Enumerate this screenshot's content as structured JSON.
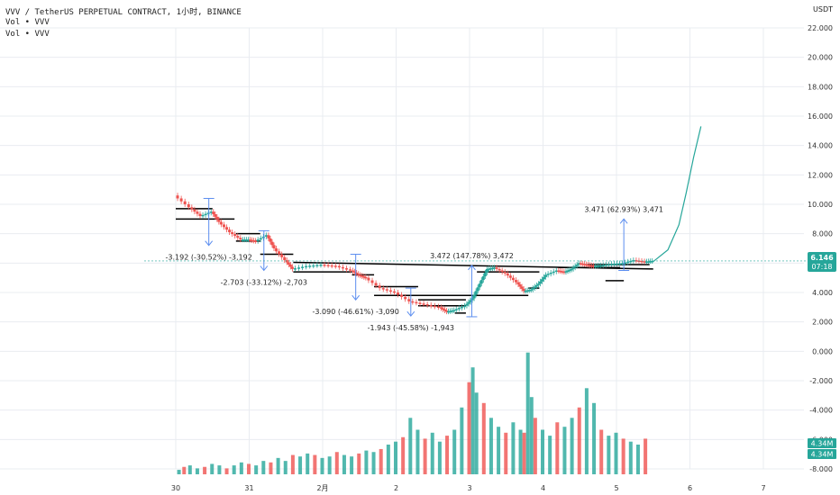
{
  "header": {
    "symbol_line": "VVV / TetherUS PERPETUAL CONTRACT, 1小时, BINANCE",
    "vol_line_1": "Vol • VVV",
    "vol_line_2": "Vol • VVV",
    "unit": "USDT"
  },
  "price_badge": {
    "value": "6.146",
    "timer": "07:18",
    "color": "#26a69a"
  },
  "volume_badges": [
    "4.34M",
    "4.34M"
  ],
  "colors": {
    "up": "#26a69a",
    "down": "#ef5350",
    "measure": "#5b8def",
    "trend": "#000000",
    "projection": "#26a69a",
    "grid": "#e9ecf1"
  },
  "chart_data": {
    "type": "candlestick",
    "yticks": [
      "22.000",
      "20.000",
      "18.000",
      "16.000",
      "14.000",
      "12.000",
      "10.000",
      "8.000",
      "6.000",
      "4.000",
      "2.000",
      "0.000",
      "-2.000",
      "-4.000",
      "-6.000",
      "-8.000"
    ],
    "ylim": [
      -8,
      22
    ],
    "xticks": [
      "30",
      "31",
      "2月",
      "2",
      "3",
      "4",
      "5",
      "6",
      "7"
    ],
    "price_path": [
      [
        0,
        10.6
      ],
      [
        0.2,
        9.8
      ],
      [
        0.35,
        9.2
      ],
      [
        0.5,
        9.5
      ],
      [
        0.6,
        8.8
      ],
      [
        0.75,
        8.1
      ],
      [
        0.9,
        7.6
      ],
      [
        1.0,
        7.6
      ],
      [
        1.1,
        7.5
      ],
      [
        1.25,
        7.9
      ],
      [
        1.35,
        7.0
      ],
      [
        1.5,
        6.2
      ],
      [
        1.6,
        5.6
      ],
      [
        1.8,
        5.8
      ],
      [
        2.0,
        5.9
      ],
      [
        2.2,
        5.8
      ],
      [
        2.4,
        5.5
      ],
      [
        2.5,
        5.2
      ],
      [
        2.6,
        5.0
      ],
      [
        2.8,
        4.3
      ],
      [
        3.0,
        4.0
      ],
      [
        3.2,
        3.4
      ],
      [
        3.4,
        3.2
      ],
      [
        3.6,
        3.0
      ],
      [
        3.7,
        2.7
      ],
      [
        3.8,
        2.8
      ],
      [
        3.95,
        3.1
      ],
      [
        4.05,
        3.6
      ],
      [
        4.15,
        4.6
      ],
      [
        4.25,
        5.6
      ],
      [
        4.35,
        5.7
      ],
      [
        4.5,
        5.3
      ],
      [
        4.65,
        4.7
      ],
      [
        4.75,
        4.1
      ],
      [
        4.85,
        4.2
      ],
      [
        4.95,
        4.6
      ],
      [
        5.05,
        5.2
      ],
      [
        5.2,
        5.5
      ],
      [
        5.3,
        5.4
      ],
      [
        5.4,
        5.6
      ],
      [
        5.5,
        6.0
      ],
      [
        5.6,
        5.9
      ],
      [
        5.7,
        5.8
      ],
      [
        5.8,
        5.85
      ],
      [
        5.95,
        5.95
      ],
      [
        6.1,
        6.0
      ],
      [
        6.25,
        6.2
      ],
      [
        6.4,
        6.1
      ],
      [
        6.5,
        6.146
      ]
    ],
    "projection": [
      [
        6.5,
        6.1
      ],
      [
        6.7,
        6.9
      ],
      [
        6.85,
        8.6
      ],
      [
        6.95,
        10.8
      ],
      [
        7.05,
        13.2
      ],
      [
        7.15,
        15.3
      ]
    ],
    "trend_lines": [
      [
        [
          0,
          9.7
        ],
        [
          0.5,
          9.7
        ]
      ],
      [
        [
          0,
          9.0
        ],
        [
          0.8,
          9.0
        ]
      ],
      [
        [
          0.82,
          8.0
        ],
        [
          1.15,
          8.0
        ]
      ],
      [
        [
          0.82,
          7.5
        ],
        [
          1.15,
          7.5
        ]
      ],
      [
        [
          1.15,
          6.6
        ],
        [
          1.6,
          6.6
        ]
      ],
      [
        [
          1.6,
          6.05
        ],
        [
          6.5,
          5.6
        ]
      ],
      [
        [
          1.6,
          5.4
        ],
        [
          2.4,
          5.4
        ]
      ],
      [
        [
          2.4,
          5.2
        ],
        [
          2.7,
          5.2
        ]
      ],
      [
        [
          2.7,
          4.4
        ],
        [
          3.3,
          4.4
        ]
      ],
      [
        [
          2.7,
          3.8
        ],
        [
          4.8,
          3.8
        ]
      ],
      [
        [
          3.3,
          3.5
        ],
        [
          3.95,
          3.5
        ]
      ],
      [
        [
          3.3,
          3.1
        ],
        [
          3.95,
          3.1
        ]
      ],
      [
        [
          3.8,
          2.6
        ],
        [
          3.95,
          2.6
        ]
      ],
      [
        [
          4.1,
          5.4
        ],
        [
          4.95,
          5.4
        ]
      ],
      [
        [
          4.8,
          4.3
        ],
        [
          4.95,
          4.3
        ]
      ],
      [
        [
          5.2,
          5.7
        ],
        [
          6.05,
          5.7
        ]
      ],
      [
        [
          5.6,
          5.9
        ],
        [
          6.45,
          5.9
        ]
      ],
      [
        [
          5.85,
          4.8
        ],
        [
          6.1,
          4.8
        ]
      ]
    ],
    "measurements": [
      {
        "label": "-3.192 (-30.52%) -3,192",
        "x": 0.45,
        "from": 10.4,
        "to": 7.2
      },
      {
        "label": "-2.703 (-33.12%) -2,703",
        "x": 1.2,
        "from": 8.2,
        "to": 5.5
      },
      {
        "label": "-3.090 (-46.61%) -3,090",
        "x": 2.45,
        "from": 6.6,
        "to": 3.5
      },
      {
        "label": "-1.943 (-45.58%) -1,943",
        "x": 3.2,
        "from": 4.3,
        "to": 2.4
      },
      {
        "label": "3.472 (147.78%) 3,472",
        "x": 4.03,
        "from": 2.35,
        "to": 5.85
      },
      {
        "label": "3.471 (62.93%) 3,471",
        "x": 6.1,
        "from": 5.5,
        "to": 9.0
      }
    ],
    "volume": [
      [
        0.05,
        3
      ],
      [
        0.12,
        5
      ],
      [
        0.2,
        6
      ],
      [
        0.3,
        4
      ],
      [
        0.4,
        5
      ],
      [
        0.5,
        7
      ],
      [
        0.6,
        6
      ],
      [
        0.7,
        4
      ],
      [
        0.8,
        6
      ],
      [
        0.9,
        8
      ],
      [
        1.0,
        7
      ],
      [
        1.1,
        6
      ],
      [
        1.2,
        9
      ],
      [
        1.3,
        8
      ],
      [
        1.4,
        11
      ],
      [
        1.5,
        9
      ],
      [
        1.6,
        13
      ],
      [
        1.7,
        12
      ],
      [
        1.8,
        14
      ],
      [
        1.9,
        13
      ],
      [
        2.0,
        11
      ],
      [
        2.1,
        12
      ],
      [
        2.2,
        15
      ],
      [
        2.3,
        13
      ],
      [
        2.4,
        12
      ],
      [
        2.5,
        14
      ],
      [
        2.6,
        16
      ],
      [
        2.7,
        15
      ],
      [
        2.8,
        17
      ],
      [
        2.9,
        20
      ],
      [
        3.0,
        22
      ],
      [
        3.1,
        25
      ],
      [
        3.2,
        38
      ],
      [
        3.3,
        30
      ],
      [
        3.4,
        24
      ],
      [
        3.5,
        28
      ],
      [
        3.6,
        22
      ],
      [
        3.7,
        26
      ],
      [
        3.8,
        30
      ],
      [
        3.9,
        45
      ],
      [
        4.0,
        62
      ],
      [
        4.05,
        72
      ],
      [
        4.1,
        55
      ],
      [
        4.2,
        48
      ],
      [
        4.3,
        38
      ],
      [
        4.4,
        32
      ],
      [
        4.5,
        28
      ],
      [
        4.6,
        35
      ],
      [
        4.7,
        30
      ],
      [
        4.75,
        28
      ],
      [
        4.8,
        82
      ],
      [
        4.85,
        52
      ],
      [
        4.9,
        38
      ],
      [
        5.0,
        30
      ],
      [
        5.1,
        26
      ],
      [
        5.2,
        35
      ],
      [
        5.3,
        32
      ],
      [
        5.4,
        38
      ],
      [
        5.5,
        45
      ],
      [
        5.6,
        58
      ],
      [
        5.7,
        48
      ],
      [
        5.8,
        30
      ],
      [
        5.9,
        26
      ],
      [
        6.0,
        28
      ],
      [
        6.1,
        24
      ],
      [
        6.2,
        22
      ],
      [
        6.3,
        20
      ],
      [
        6.4,
        24
      ]
    ]
  }
}
